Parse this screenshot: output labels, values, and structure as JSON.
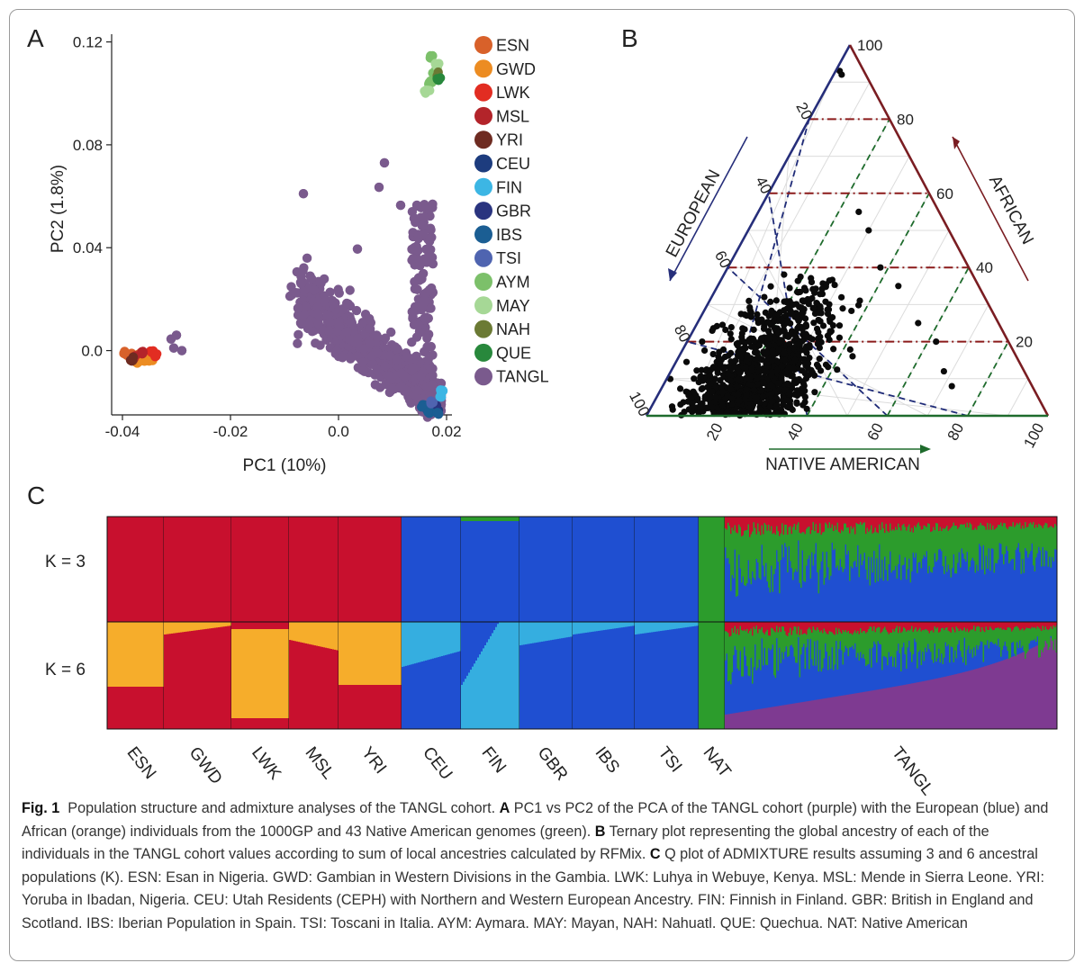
{
  "panels": {
    "a": "A",
    "b": "B",
    "c": "C"
  },
  "colors": {
    "ESN": "#d8612a",
    "GWD": "#ec8c22",
    "LWK": "#e22d22",
    "MSL": "#b3242a",
    "YRI": "#6e2b21",
    "CEU": "#1d3c7e",
    "FIN": "#3cb6e4",
    "GBR": "#2a347f",
    "IBS": "#1b5e93",
    "TSI": "#4f64b0",
    "AYM": "#7cc06a",
    "MAY": "#a6d896",
    "NAH": "#6b7a34",
    "QUE": "#28883c",
    "TANGL": "#7a5a8d",
    "african_red": "#c8102e",
    "european_blue": "#1f4fd1",
    "native_green": "#2c9c2c",
    "light_blue": "#35aee0",
    "orange": "#f6ad2b",
    "purple": "#7e3a91"
  },
  "chart_data": [
    {
      "type": "scatter",
      "panel": "A",
      "xlabel": "PC1 (10%)",
      "ylabel": "PC2 (1.8%)",
      "xlim": [
        -0.042,
        0.021
      ],
      "ylim": [
        -0.025,
        0.123
      ],
      "xticks": [
        "-0.04",
        "-0.02",
        "0.0",
        "0.02"
      ],
      "xtick_values": [
        -0.04,
        -0.02,
        0.0,
        0.02
      ],
      "yticks": [
        "0.0",
        "0.04",
        "0.08",
        "0.12"
      ],
      "ytick_values": [
        0.0,
        0.04,
        0.08,
        0.12
      ],
      "legend_position": "right",
      "legend": [
        "ESN",
        "GWD",
        "LWK",
        "MSL",
        "YRI",
        "CEU",
        "FIN",
        "GBR",
        "IBS",
        "TSI",
        "AYM",
        "MAY",
        "NAH",
        "QUE",
        "TANGL"
      ],
      "series": [
        {
          "name": "ESN",
          "points": [
            [
              -0.0385,
              -0.002
            ],
            [
              -0.0375,
              -0.003
            ],
            [
              -0.0368,
              -0.0015
            ],
            [
              -0.0395,
              -0.001
            ]
          ]
        },
        {
          "name": "GWD",
          "points": [
            [
              -0.0365,
              -0.003
            ],
            [
              -0.0355,
              -0.004
            ],
            [
              -0.0372,
              -0.0045
            ],
            [
              -0.0348,
              -0.0035
            ]
          ]
        },
        {
          "name": "LWK",
          "points": [
            [
              -0.0345,
              -0.0005
            ],
            [
              -0.0338,
              -0.002
            ]
          ]
        },
        {
          "name": "MSL",
          "points": [
            [
              -0.0378,
              -0.0025
            ],
            [
              -0.0362,
              -0.001
            ]
          ]
        },
        {
          "name": "YRI",
          "points": [
            [
              -0.0382,
              -0.0035
            ]
          ]
        },
        {
          "name": "CEU",
          "points": [
            [
              0.0172,
              -0.022
            ],
            [
              0.0182,
              -0.0235
            ]
          ]
        },
        {
          "name": "FIN",
          "points": [
            [
              0.0192,
              -0.0155
            ],
            [
              0.0188,
              -0.018
            ]
          ]
        },
        {
          "name": "GBR",
          "points": [
            [
              0.0166,
              -0.0225
            ],
            [
              0.0177,
              -0.0215
            ]
          ]
        },
        {
          "name": "IBS",
          "points": [
            [
              0.0158,
              -0.0215
            ],
            [
              0.0168,
              -0.0235
            ],
            [
              0.0183,
              -0.0245
            ]
          ]
        },
        {
          "name": "TSI",
          "points": [
            [
              0.0172,
              -0.0205
            ]
          ]
        },
        {
          "name": "AYM",
          "points": [
            [
              0.0172,
              0.114
            ],
            [
              0.0178,
              0.108
            ],
            [
              0.0168,
              0.104
            ]
          ]
        },
        {
          "name": "MAY",
          "points": [
            [
              0.0165,
              0.101
            ],
            [
              0.0182,
              0.111
            ]
          ]
        },
        {
          "name": "NAH",
          "points": [
            [
              0.0183,
              0.107
            ]
          ]
        },
        {
          "name": "QUE",
          "points": [
            [
              0.0185,
              0.1055
            ]
          ]
        },
        {
          "name": "TANGL",
          "points": [
            [
              -0.03,
              0.006
            ],
            [
              -0.031,
              0.0045
            ],
            [
              -0.0305,
              0.001
            ],
            [
              -0.029,
              0.0
            ],
            [
              -0.0065,
              0.061
            ],
            [
              0.0085,
              0.073
            ],
            [
              0.0035,
              0.0395
            ],
            [
              -0.005,
              0.028
            ],
            [
              -0.0075,
              0.0165
            ],
            [
              -0.0045,
              0.0235
            ],
            [
              -0.008,
              0.0225
            ],
            [
              0.0075,
              0.0635
            ],
            [
              0.0115,
              0.0565
            ],
            [
              0.0155,
              0.0485
            ]
          ]
        }
      ]
    },
    {
      "type": "scatter",
      "panel": "B",
      "subtype": "ternary",
      "axes": [
        "EUROPEAN",
        "AFRICAN",
        "NATIVE AMERICAN"
      ],
      "ticks": [
        "20",
        "40",
        "60",
        "80",
        "100"
      ],
      "bottom_ticks": [
        "20",
        "40",
        "60",
        "80",
        "100"
      ]
    },
    {
      "type": "bar",
      "panel": "C",
      "subtype": "admixture",
      "rows": [
        "K = 3",
        "K = 6"
      ],
      "categories": [
        "ESN",
        "GWD",
        "LWK",
        "MSL",
        "YRI",
        "CEU",
        "FIN",
        "GBR",
        "IBS",
        "TSI",
        "NAT",
        "TANGL"
      ]
    }
  ],
  "caption": {
    "label": "Fig. 1",
    "intro": "Population structure and admixture analyses of the TANGL cohort. ",
    "a_label": "A",
    "a_text": " PC1 vs PC2 of the PCA of the TANGL cohort (purple) with the European (blue) and African (orange) individuals from the 1000GP and 43 Native American genomes (green). ",
    "b_label": "B",
    "b_text": " Ternary plot representing the global ancestry of each of the individuals in the TANGL cohort values according to sum of local ancestries calculated by RFMix. ",
    "c_label": "C",
    "c_text": " Q plot of ADMIXTURE results assuming 3 and 6 ancestral populations (K). ESN: Esan in Nigeria. GWD: Gambian in Western Divisions in the Gambia. LWK: Luhya in Webuye, Kenya. MSL: Mende in Sierra Leone. YRI: Yoruba in Ibadan, Nigeria. CEU: Utah Residents (CEPH) with Northern and Western European Ancestry. FIN: Finnish in Finland. GBR: British in England and Scotland. IBS: Iberian Population in Spain. TSI: Toscani in Italia. AYM: Aymara. MAY: Mayan, NAH: Nahuatl. QUE: Quechua. NAT: Native American"
  }
}
